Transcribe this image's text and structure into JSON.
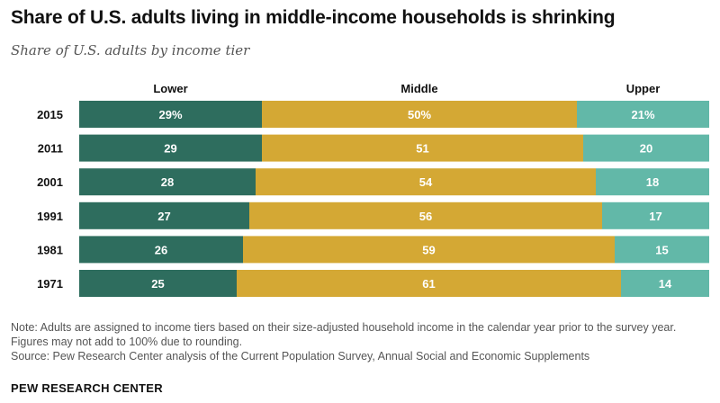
{
  "title": "Share of U.S. adults living in middle-income households is shrinking",
  "subtitle": "Share of U.S. adults by income tier",
  "chart_data": {
    "type": "bar",
    "orientation": "horizontal",
    "stacked": true,
    "categories": [
      "2015",
      "2011",
      "2001",
      "1991",
      "1981",
      "1971"
    ],
    "series": [
      {
        "name": "Lower",
        "values": [
          29,
          29,
          28,
          27,
          26,
          25
        ],
        "labels": [
          "29%",
          "29",
          "28",
          "27",
          "26",
          "25"
        ],
        "color": "#2e6d5e"
      },
      {
        "name": "Middle",
        "values": [
          50,
          51,
          54,
          56,
          59,
          61
        ],
        "labels": [
          "50%",
          "51",
          "54",
          "56",
          "59",
          "61"
        ],
        "color": "#d4a834"
      },
      {
        "name": "Upper",
        "values": [
          21,
          20,
          18,
          17,
          15,
          14
        ],
        "labels": [
          "21%",
          "20",
          "18",
          "17",
          "15",
          "14"
        ],
        "color": "#62b8a8"
      }
    ],
    "xlim": [
      0,
      100
    ],
    "legend": "top",
    "grid": false
  },
  "notes": {
    "note": "Note: Adults are assigned to income tiers based on their size-adjusted household income in the calendar year prior to the survey year. Figures may not add to 100% due to rounding.",
    "source": "Source: Pew Research Center analysis of the Current Population Survey, Annual Social and Economic Supplements"
  },
  "branding": "PEW RESEARCH CENTER"
}
